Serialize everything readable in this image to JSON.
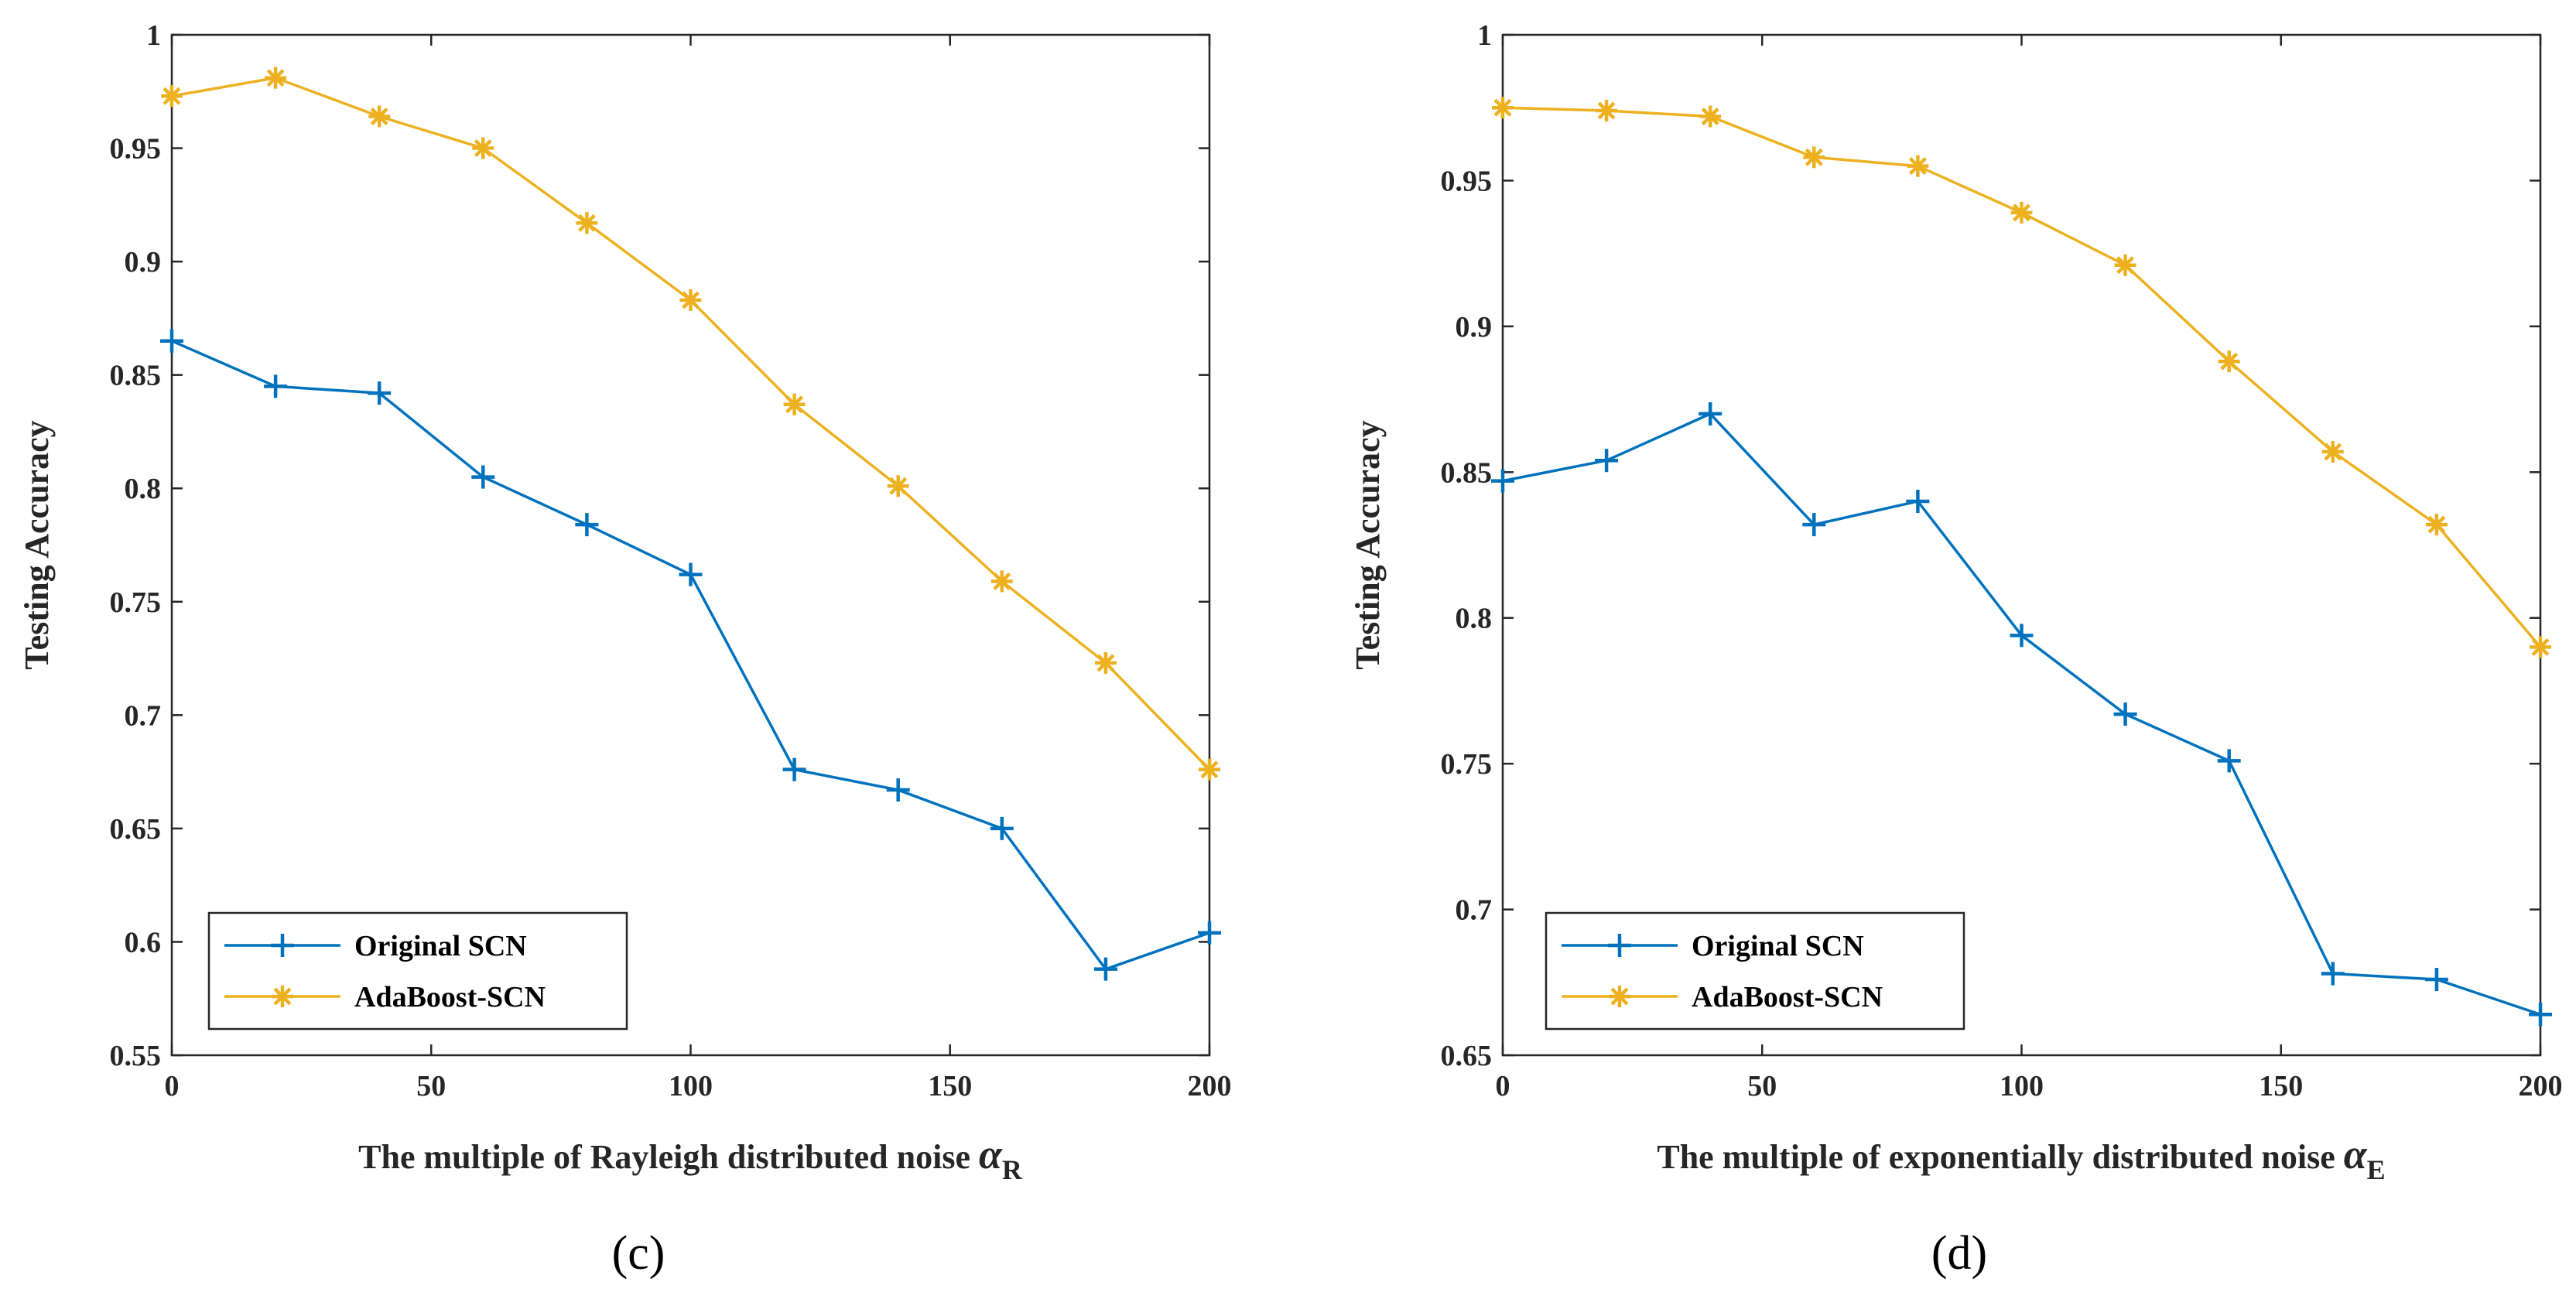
{
  "chart_data": [
    {
      "type": "line",
      "panel_label": "(c)",
      "xlabel_text": "The multiple of Rayleigh distributed noise ",
      "xlabel_symbol": "α",
      "xlabel_subscript": "R",
      "ylabel": "Testing Accuracy",
      "xlim": [
        0,
        200
      ],
      "ylim": [
        0.55,
        1
      ],
      "xticks": [
        "0",
        "50",
        "100",
        "150",
        "200"
      ],
      "yticks": [
        "0.55",
        "0.6",
        "0.65",
        "0.7",
        "0.75",
        "0.8",
        "0.85",
        "0.9",
        "0.95",
        "1"
      ],
      "x": [
        0,
        20,
        40,
        60,
        80,
        100,
        120,
        140,
        160,
        180,
        200
      ],
      "legend_position": "bottom-left",
      "series": [
        {
          "name": "Original SCN",
          "color": "#0072BD",
          "marker": "plus",
          "values": [
            0.865,
            0.845,
            0.842,
            0.805,
            0.784,
            0.762,
            0.676,
            0.667,
            0.65,
            0.588,
            0.604
          ]
        },
        {
          "name": "AdaBoost-SCN",
          "color": "#EDB120",
          "marker": "asterisk",
          "values": [
            0.973,
            0.981,
            0.964,
            0.95,
            0.917,
            0.883,
            0.837,
            0.801,
            0.759,
            0.723,
            0.676
          ]
        }
      ]
    },
    {
      "type": "line",
      "panel_label": "(d)",
      "xlabel_text": "The multiple of exponentially distributed noise ",
      "xlabel_symbol": "α",
      "xlabel_subscript": "E",
      "ylabel": "Testing Accuracy",
      "xlim": [
        0,
        200
      ],
      "ylim": [
        0.65,
        1
      ],
      "xticks": [
        "0",
        "50",
        "100",
        "150",
        "200"
      ],
      "yticks": [
        "0.65",
        "0.7",
        "0.75",
        "0.8",
        "0.85",
        "0.9",
        "0.95",
        "1"
      ],
      "x": [
        0,
        20,
        40,
        60,
        80,
        100,
        120,
        140,
        160,
        180,
        200
      ],
      "legend_position": "bottom-left",
      "series": [
        {
          "name": "Original SCN",
          "color": "#0072BD",
          "marker": "plus",
          "values": [
            0.847,
            0.854,
            0.87,
            0.832,
            0.84,
            0.794,
            0.767,
            0.751,
            0.678,
            0.676,
            0.664
          ]
        },
        {
          "name": "AdaBoost-SCN",
          "color": "#EDB120",
          "marker": "asterisk",
          "values": [
            0.975,
            0.974,
            0.972,
            0.958,
            0.955,
            0.939,
            0.921,
            0.888,
            0.857,
            0.832,
            0.79
          ]
        }
      ]
    }
  ]
}
